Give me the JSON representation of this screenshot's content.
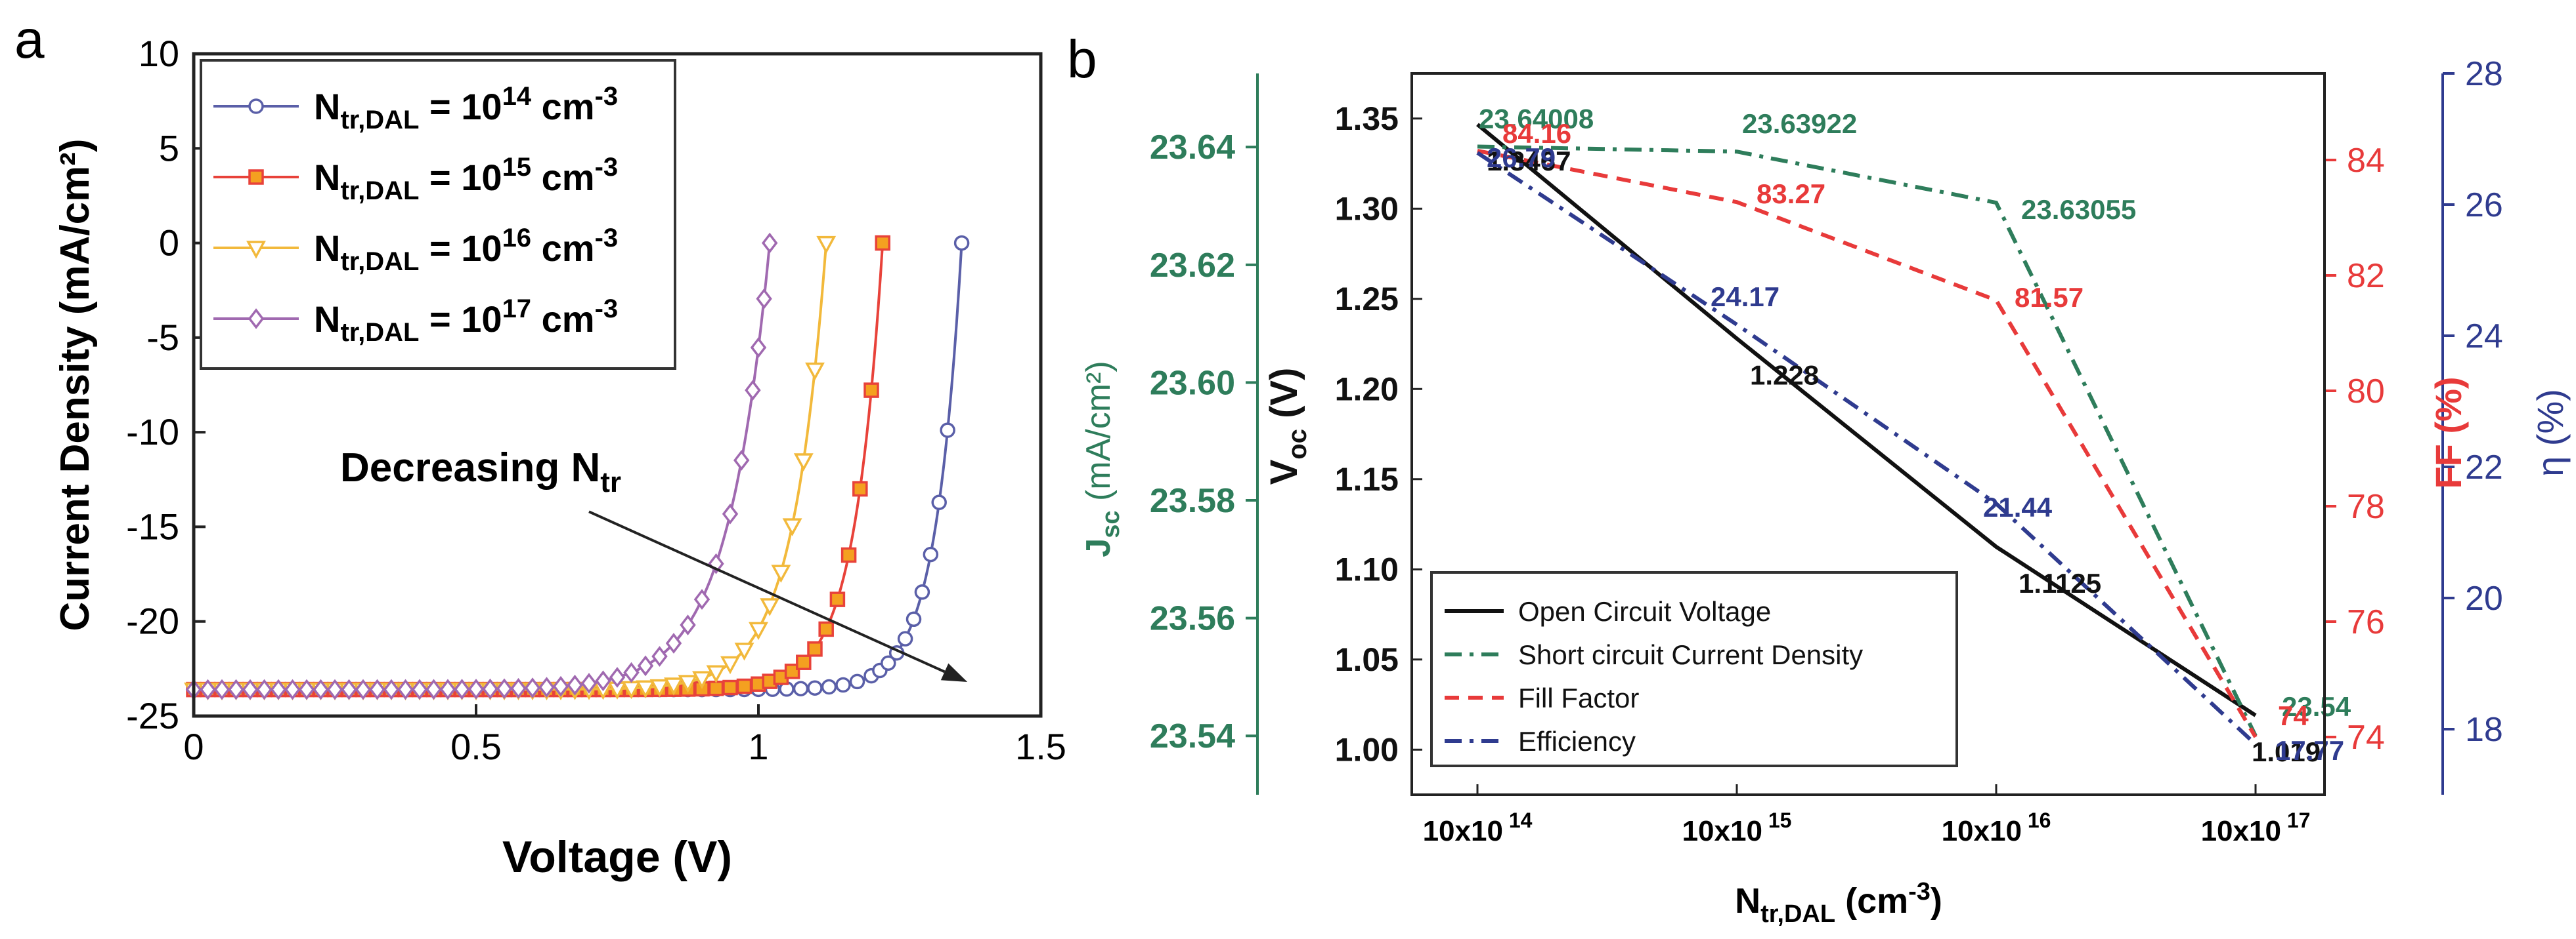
{
  "chart_data": [
    {
      "panel_label": "a",
      "type": "line",
      "xlabel": "Voltage (V)",
      "ylabel": "Current Density (mA/cm²)",
      "xlim": [
        0,
        1.5
      ],
      "ylim": [
        -25,
        10
      ],
      "xticks": [
        0,
        0.5,
        1,
        1.5
      ],
      "xtick_labels": [
        "0",
        "0.5",
        "1",
        "1.5"
      ],
      "yticks": [
        10,
        5,
        0,
        -5,
        -10,
        -15,
        -20,
        -25
      ],
      "ytick_labels": [
        "10",
        "5",
        "0",
        "-5",
        "-10",
        "-15",
        "-20",
        "-25"
      ],
      "legend": {
        "placement": "top-left"
      },
      "annotation": {
        "text": "Decreasing N",
        "subscript": "tr",
        "arrow_from": [
          0.7,
          -14.2
        ],
        "arrow_to": [
          1.37,
          -23.2
        ]
      },
      "series": [
        {
          "name": "N_tr,DAL = 10^14 cm^-3",
          "label_main": "N",
          "label_sub": "tr,DAL",
          "label_eq": " = 10",
          "label_exp": "14",
          "label_unit": " cm",
          "label_unit_exp": "-3",
          "color": "#5a5fa8",
          "marker": "circle",
          "Voc": 1.36,
          "Jsc": -23.6,
          "Vt": 0.046,
          "x": [
            0,
            0.025,
            0.05,
            0.075,
            0.1,
            0.125,
            0.15,
            0.175,
            0.2,
            0.225,
            0.25,
            0.275,
            0.3,
            0.325,
            0.35,
            0.375,
            0.4,
            0.425,
            0.45,
            0.475,
            0.5,
            0.525,
            0.55,
            0.575,
            0.6,
            0.625,
            0.65,
            0.675,
            0.7,
            0.725,
            0.75,
            0.775,
            0.8,
            0.825,
            0.85,
            0.875,
            0.9,
            0.925,
            0.95,
            0.975,
            1.0,
            1.025,
            1.05,
            1.075,
            1.1,
            1.125,
            1.15,
            1.175,
            1.2,
            1.215,
            1.23,
            1.245,
            1.26,
            1.275,
            1.29,
            1.305,
            1.32,
            1.335,
            1.36
          ]
        },
        {
          "name": "N_tr,DAL = 10^15 cm^-3",
          "label_main": "N",
          "label_sub": "tr,DAL",
          "label_eq": " = 10",
          "label_exp": "15",
          "label_unit": " cm",
          "label_unit_exp": "-3",
          "color": "#e8423a",
          "marker": "square",
          "Voc": 1.22,
          "Jsc": -23.6,
          "Vt": 0.05,
          "x": [
            0,
            0.025,
            0.05,
            0.075,
            0.1,
            0.125,
            0.15,
            0.175,
            0.2,
            0.225,
            0.25,
            0.275,
            0.3,
            0.325,
            0.35,
            0.375,
            0.4,
            0.425,
            0.45,
            0.475,
            0.5,
            0.525,
            0.55,
            0.575,
            0.6,
            0.625,
            0.65,
            0.675,
            0.7,
            0.725,
            0.75,
            0.775,
            0.8,
            0.825,
            0.85,
            0.875,
            0.9,
            0.925,
            0.95,
            0.975,
            1.0,
            1.02,
            1.04,
            1.06,
            1.08,
            1.1,
            1.12,
            1.14,
            1.16,
            1.18,
            1.2,
            1.22
          ]
        },
        {
          "name": "N_tr,DAL = 10^16 cm^-3",
          "label_main": "N",
          "label_sub": "tr,DAL",
          "label_eq": " = 10",
          "label_exp": "16",
          "label_unit": " cm",
          "label_unit_exp": "-3",
          "color": "#f2b93b",
          "marker": "triangle-down",
          "Voc": 1.12,
          "Jsc": -23.6,
          "Vt": 0.06,
          "x": [
            0,
            0.025,
            0.05,
            0.075,
            0.1,
            0.125,
            0.15,
            0.175,
            0.2,
            0.225,
            0.25,
            0.275,
            0.3,
            0.325,
            0.35,
            0.375,
            0.4,
            0.425,
            0.45,
            0.475,
            0.5,
            0.525,
            0.55,
            0.575,
            0.6,
            0.625,
            0.65,
            0.675,
            0.7,
            0.725,
            0.75,
            0.775,
            0.8,
            0.825,
            0.85,
            0.875,
            0.9,
            0.925,
            0.95,
            0.975,
            1.0,
            1.02,
            1.04,
            1.06,
            1.08,
            1.1,
            1.12
          ]
        },
        {
          "name": "N_tr,DAL = 10^17 cm^-3",
          "label_main": "N",
          "label_sub": "tr,DAL",
          "label_eq": " = 10",
          "label_exp": "17",
          "label_unit": " cm",
          "label_unit_exp": "-3",
          "color": "#a069b0",
          "marker": "diamond",
          "Voc": 1.02,
          "Jsc": -23.6,
          "Vt": 0.075,
          "x": [
            0,
            0.025,
            0.05,
            0.075,
            0.1,
            0.125,
            0.15,
            0.175,
            0.2,
            0.225,
            0.25,
            0.275,
            0.3,
            0.325,
            0.35,
            0.375,
            0.4,
            0.425,
            0.45,
            0.475,
            0.5,
            0.525,
            0.55,
            0.575,
            0.6,
            0.625,
            0.65,
            0.675,
            0.7,
            0.725,
            0.75,
            0.775,
            0.8,
            0.825,
            0.85,
            0.875,
            0.9,
            0.925,
            0.95,
            0.97,
            0.99,
            1.0,
            1.01,
            1.02
          ]
        }
      ]
    },
    {
      "panel_label": "b",
      "type": "line",
      "xlabel_main": "N",
      "xlabel_sub": "tr,DAL",
      "xlabel_unit": " (cm",
      "xlabel_unit_exp": "-3",
      "xlabel_close": ")",
      "x_categories": [
        "10x10^14",
        "10x10^15",
        "10x10^16",
        "10x10^17"
      ],
      "xtick_main": "10x10",
      "xtick_exps": [
        "14",
        "15",
        "16",
        "17"
      ],
      "axes": {
        "voc": {
          "label_main": "V",
          "label_sub": "oc",
          "label_unit": " (V)",
          "color": "#111111",
          "range": [
            0.975,
            1.375
          ],
          "ticks": [
            1.0,
            1.05,
            1.1,
            1.15,
            1.2,
            1.25,
            1.3,
            1.35
          ],
          "tick_labels": [
            "1.00",
            "1.05",
            "1.10",
            "1.15",
            "1.20",
            "1.25",
            "1.30",
            "1.35"
          ]
        },
        "jsc": {
          "label_main": "J",
          "label_sub": "sc",
          "label_unit": " (mA/cm²)",
          "color": "#2e7d5b",
          "range": [
            23.53,
            23.6525
          ],
          "ticks": [
            23.54,
            23.56,
            23.58,
            23.6,
            23.62,
            23.64
          ],
          "tick_labels": [
            "23.54",
            "23.56",
            "23.58",
            "23.60",
            "23.62",
            "23.64"
          ]
        },
        "ff": {
          "label": "FF (%)",
          "color": "#e83a3a",
          "range": [
            73,
            85.5
          ],
          "ticks": [
            74,
            76,
            78,
            80,
            82,
            84
          ],
          "tick_labels": [
            "74",
            "76",
            "78",
            "80",
            "82",
            "84"
          ]
        },
        "eff": {
          "label": "η (%)",
          "color": "#2f3b8f",
          "range": [
            17,
            28
          ],
          "ticks": [
            18,
            20,
            22,
            24,
            26,
            28
          ],
          "tick_labels": [
            "18",
            "20",
            "22",
            "24",
            "26",
            "28"
          ]
        }
      },
      "legend": {
        "placement": "bottom-left"
      },
      "series": [
        {
          "name": "Open Circuit Voltage",
          "axis": "voc",
          "color": "#111111",
          "dash": "",
          "values": [
            1.3467,
            1.228,
            1.1125,
            1.019
          ],
          "data_labels": [
            "1.3467",
            "1.228",
            "1.1125",
            "1.019"
          ]
        },
        {
          "name": "Short circuit Current Density",
          "axis": "jsc",
          "color": "#2e7d5b",
          "dash": "dashdot",
          "values": [
            23.64008,
            23.63922,
            23.63055,
            23.54
          ],
          "data_labels": [
            "23.64008",
            "23.63922",
            "23.63055",
            "23.54"
          ]
        },
        {
          "name": "Fill Factor",
          "axis": "ff",
          "color": "#e83a3a",
          "dash": "dash",
          "values": [
            84.16,
            83.27,
            81.57,
            74
          ],
          "data_labels": [
            "84.16",
            "83.27",
            "81.57",
            "74"
          ]
        },
        {
          "name": "Efficiency",
          "axis": "eff",
          "color": "#2f3b8f",
          "dash": "dashdot",
          "values": [
            26.79,
            24.17,
            21.44,
            17.77
          ],
          "data_labels": [
            "26.79",
            "24.17",
            "21.44",
            "17.77"
          ]
        }
      ]
    }
  ]
}
